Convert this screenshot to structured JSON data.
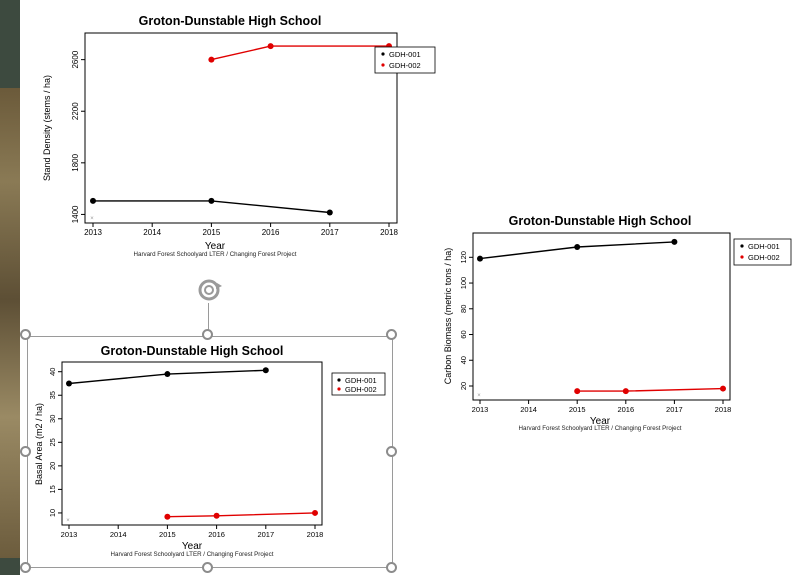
{
  "colors": {
    "series1": "#000000",
    "series2": "#e00000"
  },
  "chart_data": [
    {
      "type": "line",
      "title": "Groton-Dunstable High School",
      "xlabel": "Year",
      "ylabel": "Stand Density (stems / ha)",
      "caption": "Harvard Forest Schoolyard LTER / Changing Forest Project",
      "xlim": [
        2013,
        2018
      ],
      "ylim": [
        1380,
        2760
      ],
      "xticks": [
        "2013",
        "2014",
        "2015",
        "2016",
        "2017",
        "2018"
      ],
      "yticks": [
        "1400",
        "1800",
        "2200",
        "2600"
      ],
      "legend_position": "right",
      "series": [
        {
          "name": "GDH-001",
          "x": [
            2013,
            2015,
            2017
          ],
          "y": [
            1505,
            1505,
            1415
          ]
        },
        {
          "name": "GDH-002",
          "x": [
            2015,
            2016,
            2018
          ],
          "y": [
            2600,
            2705,
            2705
          ]
        }
      ]
    },
    {
      "type": "line",
      "title": "Groton-Dunstable High School",
      "xlabel": "Year",
      "ylabel": "Carbon Biomass (metric tons / ha)",
      "caption": "Harvard Forest Schoolyard LTER / Changing Forest Project",
      "xlim": [
        2013,
        2018
      ],
      "ylim": [
        13,
        135
      ],
      "xticks": [
        "2013",
        "2014",
        "2015",
        "2016",
        "2017",
        "2018"
      ],
      "yticks": [
        "20",
        "40",
        "60",
        "80",
        "100",
        "120"
      ],
      "legend_position": "right",
      "series": [
        {
          "name": "GDH-001",
          "x": [
            2013,
            2015,
            2017
          ],
          "y": [
            119,
            128,
            132
          ]
        },
        {
          "name": "GDH-002",
          "x": [
            2015,
            2016,
            2018
          ],
          "y": [
            16,
            16,
            18
          ]
        }
      ]
    },
    {
      "type": "line",
      "title": "Groton-Dunstable High School",
      "xlabel": "Year",
      "ylabel": "Basal Area (m2 / ha)",
      "caption": "Harvard Forest Schoolyard LTER / Changing Forest Project",
      "xlim": [
        2013,
        2018
      ],
      "ylim": [
        8.5,
        41
      ],
      "xticks": [
        "2013",
        "2014",
        "2015",
        "2016",
        "2017",
        "2018"
      ],
      "yticks": [
        "10",
        "15",
        "20",
        "25",
        "30",
        "35",
        "40"
      ],
      "legend_position": "right",
      "series": [
        {
          "name": "GDH-001",
          "x": [
            2013,
            2015,
            2017
          ],
          "y": [
            37.5,
            39.5,
            40.3
          ]
        },
        {
          "name": "GDH-002",
          "x": [
            2015,
            2016,
            2018
          ],
          "y": [
            9.2,
            9.4,
            10.0
          ]
        }
      ]
    }
  ]
}
